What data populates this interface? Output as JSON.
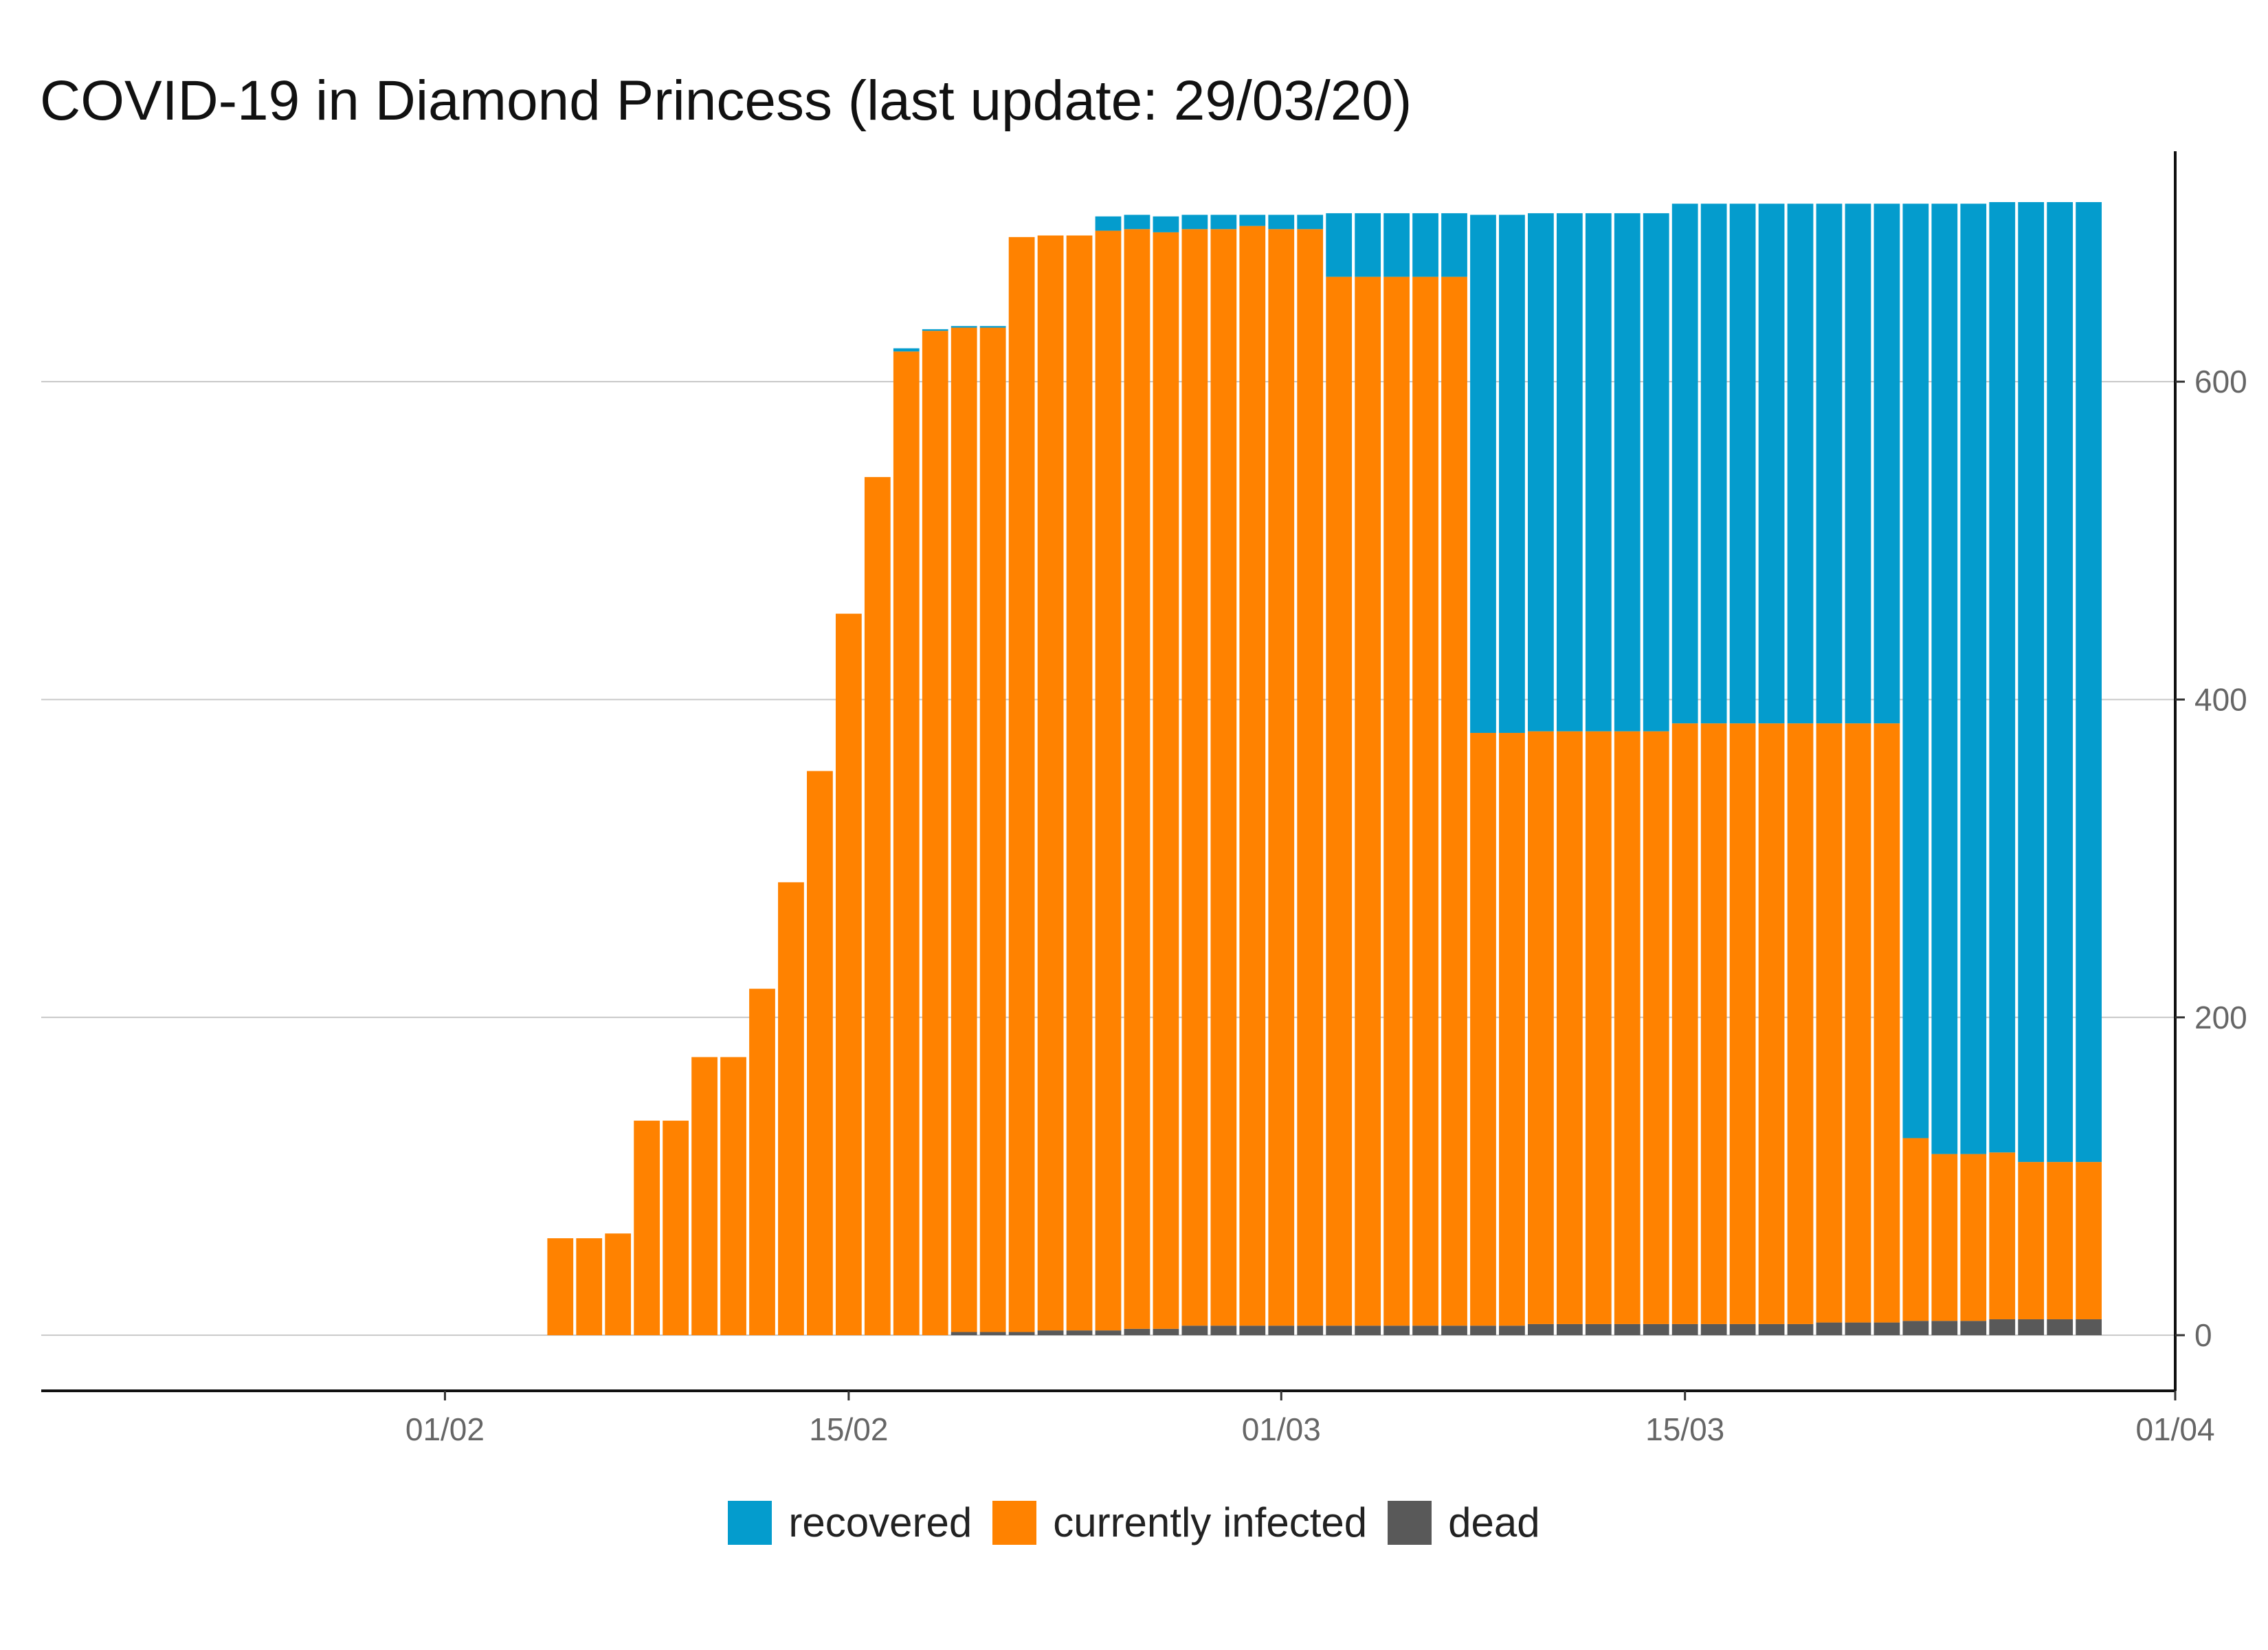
{
  "chart_data": {
    "type": "bar",
    "stacked": true,
    "title": "COVID-19 in Diamond Princess (last update: 29/03/20)",
    "xlabel": "",
    "ylabel": "",
    "x_axis": {
      "ticks": [
        "01/02",
        "15/02",
        "01/03",
        "15/03",
        "01/04"
      ],
      "tick_dates": [
        "2020-02-01",
        "2020-02-15",
        "2020-03-01",
        "2020-03-15",
        "2020-04-01"
      ],
      "range": [
        "2020-01-18",
        "2020-04-01"
      ]
    },
    "y_axis": {
      "position": "right",
      "ticks": [
        0,
        200,
        400,
        600
      ],
      "ylim": [
        -35,
        745
      ]
    },
    "grid": "horizontal",
    "legend_position": "bottom",
    "colors": {
      "recovered": "#049ccd",
      "currently infected": "#ff8200",
      "dead": "#595959"
    },
    "legend": [
      {
        "label": "recovered",
        "color": "#049ccd"
      },
      {
        "label": "currently infected",
        "color": "#ff8200"
      },
      {
        "label": "dead",
        "color": "#595959"
      }
    ],
    "categories": [
      "2020-02-05",
      "2020-02-06",
      "2020-02-07",
      "2020-02-08",
      "2020-02-09",
      "2020-02-10",
      "2020-02-11",
      "2020-02-12",
      "2020-02-13",
      "2020-02-14",
      "2020-02-15",
      "2020-02-16",
      "2020-02-17",
      "2020-02-18",
      "2020-02-19",
      "2020-02-20",
      "2020-02-21",
      "2020-02-22",
      "2020-02-23",
      "2020-02-24",
      "2020-02-25",
      "2020-02-26",
      "2020-02-27",
      "2020-02-28",
      "2020-02-29",
      "2020-03-01",
      "2020-03-02",
      "2020-03-03",
      "2020-03-04",
      "2020-03-05",
      "2020-03-06",
      "2020-03-07",
      "2020-03-08",
      "2020-03-09",
      "2020-03-10",
      "2020-03-11",
      "2020-03-12",
      "2020-03-13",
      "2020-03-14",
      "2020-03-15",
      "2020-03-16",
      "2020-03-17",
      "2020-03-18",
      "2020-03-19",
      "2020-03-20",
      "2020-03-21",
      "2020-03-22",
      "2020-03-23",
      "2020-03-24",
      "2020-03-25",
      "2020-03-26",
      "2020-03-27",
      "2020-03-28",
      "2020-03-29"
    ],
    "series": [
      {
        "name": "dead",
        "values": [
          0,
          0,
          0,
          0,
          0,
          0,
          0,
          0,
          0,
          0,
          0,
          0,
          0,
          0,
          2,
          2,
          2,
          3,
          3,
          3,
          4,
          4,
          6,
          6,
          6,
          6,
          6,
          6,
          6,
          6,
          6,
          6,
          6,
          6,
          7,
          7,
          7,
          7,
          7,
          7,
          7,
          7,
          7,
          7,
          8,
          8,
          8,
          9,
          9,
          9,
          10,
          10,
          10,
          10
        ]
      },
      {
        "name": "currently infected",
        "values": [
          61,
          61,
          64,
          135,
          135,
          175,
          175,
          218,
          285,
          355,
          454,
          540,
          619,
          632,
          632,
          632,
          689,
          689,
          689,
          692,
          692,
          690,
          690,
          690,
          692,
          690,
          690,
          660,
          660,
          660,
          660,
          660,
          373,
          373,
          373,
          373,
          373,
          373,
          373,
          378,
          378,
          378,
          378,
          378,
          377,
          377,
          377,
          115,
          105,
          105,
          105,
          99,
          99,
          99
        ]
      },
      {
        "name": "recovered",
        "values": [
          0,
          0,
          0,
          0,
          0,
          0,
          0,
          0,
          0,
          0,
          0,
          0,
          2,
          1,
          1,
          1,
          0,
          0,
          0,
          9,
          9,
          10,
          9,
          9,
          7,
          9,
          9,
          40,
          40,
          40,
          40,
          40,
          326,
          326,
          326,
          326,
          326,
          326,
          326,
          327,
          327,
          327,
          327,
          327,
          327,
          327,
          327,
          588,
          598,
          598,
          598,
          604,
          604,
          604
        ]
      }
    ]
  }
}
